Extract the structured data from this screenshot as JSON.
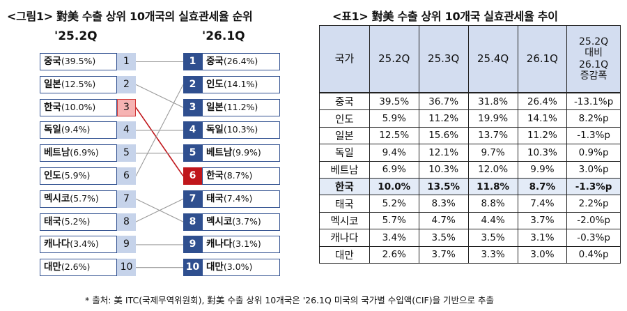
{
  "figure": {
    "title": "<그림1> 對美 수출 상위 10개국의 실효관세율 순위",
    "left_header": "'25.2Q",
    "right_header": "'26.1Q"
  },
  "table": {
    "title": "<표1> 對美 수출 상위 10개국 실효관세율 추이",
    "columns": [
      "국가",
      "25.2Q",
      "25.3Q",
      "25.4Q",
      "26.1Q",
      "25.2Q\n대비\n26.1Q\n증감폭"
    ],
    "rows": [
      [
        "중국",
        "39.5%",
        "36.7%",
        "31.8%",
        "26.4%",
        "-13.1%p"
      ],
      [
        "인도",
        "5.9%",
        "11.2%",
        "19.9%",
        "14.1%",
        "8.2%p"
      ],
      [
        "일본",
        "12.5%",
        "15.6%",
        "13.7%",
        "11.2%",
        "-1.3%p"
      ],
      [
        "독일",
        "9.4%",
        "12.1%",
        "9.7%",
        "10.3%",
        "0.9%p"
      ],
      [
        "베트남",
        "6.9%",
        "10.3%",
        "12.0%",
        "9.9%",
        "3.0%p"
      ],
      [
        "한국",
        "10.0%",
        "13.5%",
        "11.8%",
        "8.7%",
        "-1.3%p"
      ],
      [
        "태국",
        "5.2%",
        "8.3%",
        "8.8%",
        "7.4%",
        "2.2%p"
      ],
      [
        "멕시코",
        "5.7%",
        "4.7%",
        "4.4%",
        "3.7%",
        "-2.0%p"
      ],
      [
        "캐나다",
        "3.4%",
        "3.5%",
        "3.5%",
        "3.1%",
        "-0.3%p"
      ],
      [
        "대만",
        "2.6%",
        "3.7%",
        "3.3%",
        "3.0%",
        "0.4%p"
      ]
    ],
    "highlight_row": "한국"
  },
  "source": "* 출처: 美 ITC(국제무역위원회), 對美 수출 상위 10개국은 '26.1Q 미국의 국가별 수입액(CIF)을 기반으로 추출",
  "colors": {
    "navy": "#2f4f8f",
    "light_blue": "#c6d3ea",
    "highlight_red": "#c0161b",
    "highlight_pink": "#f6b3b3",
    "connector_gray": "#9a9a9a",
    "table_header": "#d3ddf0"
  },
  "chart_data": {
    "type": "table",
    "title": "<그림1> 對美 수출 상위 10개국의 실효관세율 순위",
    "left": {
      "period": "'25.2Q",
      "entries": [
        {
          "rank": 1,
          "country": "중국",
          "rate": "39.5%"
        },
        {
          "rank": 2,
          "country": "일본",
          "rate": "12.5%"
        },
        {
          "rank": 3,
          "country": "한국",
          "rate": "10.0%"
        },
        {
          "rank": 4,
          "country": "독일",
          "rate": "9.4%"
        },
        {
          "rank": 5,
          "country": "베트남",
          "rate": "6.9%"
        },
        {
          "rank": 6,
          "country": "인도",
          "rate": "5.9%"
        },
        {
          "rank": 7,
          "country": "멕시코",
          "rate": "5.7%"
        },
        {
          "rank": 8,
          "country": "태국",
          "rate": "5.2%"
        },
        {
          "rank": 9,
          "country": "캐나다",
          "rate": "3.4%"
        },
        {
          "rank": 10,
          "country": "대만",
          "rate": "2.6%"
        }
      ]
    },
    "right": {
      "period": "'26.1Q",
      "entries": [
        {
          "rank": 1,
          "country": "중국",
          "rate": "26.4%"
        },
        {
          "rank": 2,
          "country": "인도",
          "rate": "14.1%"
        },
        {
          "rank": 3,
          "country": "일본",
          "rate": "11.2%"
        },
        {
          "rank": 4,
          "country": "독일",
          "rate": "10.3%"
        },
        {
          "rank": 5,
          "country": "베트남",
          "rate": "9.9%"
        },
        {
          "rank": 6,
          "country": "한국",
          "rate": "8.7%"
        },
        {
          "rank": 7,
          "country": "태국",
          "rate": "7.4%"
        },
        {
          "rank": 8,
          "country": "멕시코",
          "rate": "3.7%"
        },
        {
          "rank": 9,
          "country": "캐나다",
          "rate": "3.1%"
        },
        {
          "rank": 10,
          "country": "대만",
          "rate": "3.0%"
        }
      ]
    },
    "highlight_country": "한국"
  }
}
